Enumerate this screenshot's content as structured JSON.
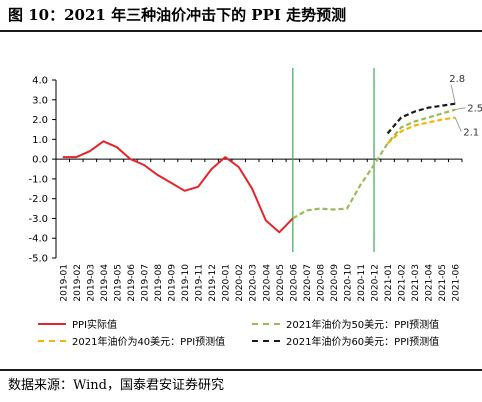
{
  "title": "图 10：2021 年三种油价冲击下的 PPI 走势预测",
  "source": "数据来源：Wind，国泰君安证券研究",
  "colors": {
    "actual": "#e8232a",
    "p50": "#9bbb59",
    "p40": "#f5b500",
    "p60": "#1a1a1a",
    "divider": "#3aaa5c",
    "axis": "#000000"
  },
  "chart_data": {
    "type": "line",
    "title": "",
    "xlabel": "",
    "ylabel": "",
    "ylim": [
      -5.0,
      4.0
    ],
    "y_ticks": [
      "4.0",
      "3.0",
      "2.0",
      "1.0",
      "0.0",
      "-1.0",
      "-2.0",
      "-3.0",
      "-4.0",
      "-5.0"
    ],
    "y_tick_values": [
      4,
      3,
      2,
      1,
      0,
      -1,
      -2,
      -3,
      -4,
      -5
    ],
    "categories": [
      "2019-01",
      "2019-02",
      "2019-03",
      "2019-04",
      "2019-05",
      "2019-06",
      "2019-07",
      "2019-08",
      "2019-09",
      "2019-10",
      "2019-11",
      "2019-12",
      "2020-01",
      "2020-02",
      "2020-03",
      "2020-04",
      "2020-05",
      "2020-06",
      "2020-07",
      "2020-08",
      "2020-09",
      "2020-10",
      "2020-11",
      "2020-12",
      "2021-01",
      "2021-02",
      "2021-03",
      "2021-04",
      "2021-05",
      "2021-06"
    ],
    "vertical_lines_at": [
      "2020-06",
      "2020-12"
    ],
    "series": [
      {
        "name": "PPI实际值",
        "color_key": "actual",
        "style": "solid",
        "values": [
          0.1,
          0.1,
          0.4,
          0.9,
          0.6,
          0.0,
          -0.3,
          -0.8,
          -1.2,
          -1.6,
          -1.4,
          -0.5,
          0.1,
          -0.4,
          -1.5,
          -3.1,
          -3.7,
          -3.0,
          null,
          null,
          null,
          null,
          null,
          null,
          null,
          null,
          null,
          null,
          null,
          null
        ]
      },
      {
        "name": "2021年油价为50美元：PPI预测值",
        "color_key": "p50",
        "style": "dashed",
        "values": [
          null,
          null,
          null,
          null,
          null,
          null,
          null,
          null,
          null,
          null,
          null,
          null,
          null,
          null,
          null,
          null,
          null,
          -3.0,
          -2.6,
          -2.5,
          -2.55,
          -2.5,
          -1.3,
          -0.3,
          0.8,
          1.6,
          1.9,
          2.1,
          2.3,
          2.5
        ]
      },
      {
        "name": "2021年油价为40美元：PPI预测值",
        "color_key": "p40",
        "style": "dashed",
        "values": [
          null,
          null,
          null,
          null,
          null,
          null,
          null,
          null,
          null,
          null,
          null,
          null,
          null,
          null,
          null,
          null,
          null,
          null,
          null,
          null,
          null,
          null,
          null,
          null,
          0.8,
          1.4,
          1.7,
          1.85,
          2.0,
          2.1
        ]
      },
      {
        "name": "2021年油价为60美元：PPI预测值",
        "color_key": "p60",
        "style": "dashed",
        "values": [
          null,
          null,
          null,
          null,
          null,
          null,
          null,
          null,
          null,
          null,
          null,
          null,
          null,
          null,
          null,
          null,
          null,
          null,
          null,
          null,
          null,
          null,
          null,
          null,
          1.3,
          2.1,
          2.4,
          2.6,
          2.7,
          2.8
        ]
      }
    ],
    "end_labels": [
      {
        "text": "2.8",
        "value": 2.8,
        "color_key": "p60"
      },
      {
        "text": "2.5",
        "value": 2.5,
        "color_key": "p50"
      },
      {
        "text": "2.1",
        "value": 2.1,
        "color_key": "p40"
      }
    ],
    "legend_placement": "bottom",
    "grid": false
  }
}
